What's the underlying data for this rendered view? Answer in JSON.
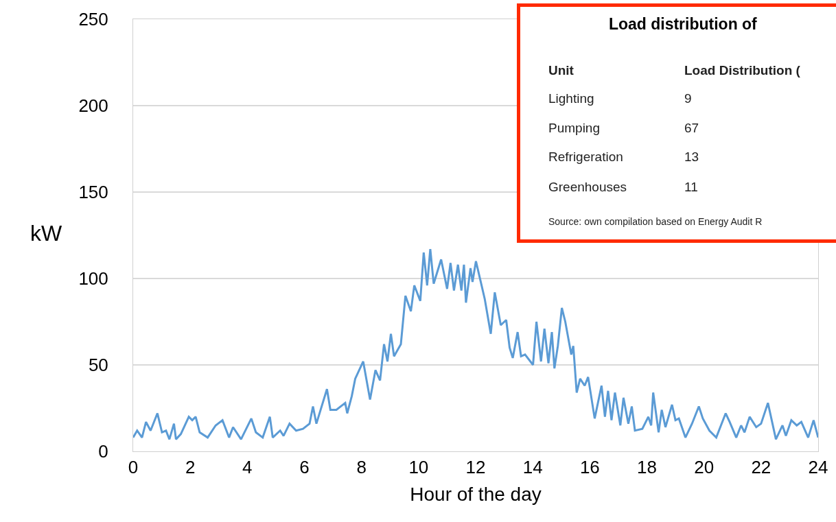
{
  "chart_data": [
    {
      "type": "line",
      "xlabel": "Hour of the day",
      "ylabel": "kW",
      "color": "#5b9bd5",
      "xlim": [
        0,
        24
      ],
      "xticks": [
        0,
        2,
        4,
        6,
        8,
        10,
        12,
        14,
        16,
        18,
        20,
        22,
        24
      ],
      "ylim": [
        0,
        250
      ],
      "yticks": [
        0,
        50,
        100,
        150,
        200,
        250
      ],
      "grid": "y",
      "legend": false,
      "marker": "none",
      "line_style": "solid",
      "x": [
        0,
        0.14,
        0.31,
        0.45,
        0.61,
        0.85,
        1.01,
        1.15,
        1.27,
        1.43,
        1.5,
        1.67,
        1.95,
        2.07,
        2.19,
        2.33,
        2.61,
        2.89,
        3.13,
        3.36,
        3.5,
        3.78,
        4.14,
        4.3,
        4.54,
        4.79,
        4.89,
        5.15,
        5.27,
        5.48,
        5.71,
        5.95,
        6.18,
        6.3,
        6.42,
        6.79,
        6.91,
        7.12,
        7.43,
        7.5,
        7.66,
        7.78,
        8.06,
        8.3,
        8.49,
        8.65,
        8.79,
        8.91,
        9.03,
        9.14,
        9.38,
        9.54,
        9.73,
        9.85,
        10.06,
        10.18,
        10.3,
        10.41,
        10.53,
        10.79,
        11.0,
        11.12,
        11.24,
        11.38,
        11.5,
        11.59,
        11.66,
        11.82,
        11.89,
        12.01,
        12.18,
        12.32,
        12.53,
        12.67,
        12.88,
        13.07,
        13.19,
        13.3,
        13.47,
        13.59,
        13.73,
        14.01,
        14.13,
        14.29,
        14.41,
        14.55,
        14.67,
        14.76,
        14.88,
        15.02,
        15.14,
        15.35,
        15.42,
        15.54,
        15.66,
        15.82,
        15.94,
        16.17,
        16.41,
        16.53,
        16.64,
        16.76,
        16.88,
        17.07,
        17.18,
        17.35,
        17.47,
        17.58,
        17.84,
        18.05,
        18.15,
        18.22,
        18.41,
        18.52,
        18.65,
        18.88,
        19.0,
        19.12,
        19.35,
        19.58,
        19.82,
        19.96,
        20.19,
        20.43,
        20.76,
        20.9,
        21.13,
        21.3,
        21.42,
        21.6,
        21.83,
        22.0,
        22.24,
        22.52,
        22.75,
        22.87,
        23.06,
        23.25,
        23.41,
        23.65,
        23.84,
        24.0
      ],
      "values": [
        8,
        12,
        8,
        17,
        12,
        22,
        11,
        12,
        7,
        16,
        7,
        10,
        20,
        18,
        20,
        11,
        8,
        15,
        18,
        8,
        14,
        7,
        19,
        11,
        8,
        20,
        8,
        12,
        9,
        16,
        12,
        13,
        16,
        26,
        16,
        36,
        24,
        24,
        28,
        22,
        32,
        42,
        52,
        30,
        47,
        41,
        62,
        52,
        68,
        55,
        62,
        90,
        81,
        96,
        87,
        115,
        96,
        117,
        97,
        111,
        94,
        109,
        93,
        108,
        93,
        108,
        86,
        106,
        98,
        110,
        98,
        88,
        68,
        92,
        73,
        76,
        60,
        54,
        69,
        55,
        56,
        50,
        75,
        52,
        71,
        51,
        69,
        48,
        61,
        83,
        75,
        56,
        61,
        34,
        42,
        38,
        43,
        19,
        38,
        20,
        35,
        18,
        34,
        15,
        31,
        16,
        26,
        12,
        13,
        20,
        15,
        34,
        11,
        24,
        14,
        27,
        18,
        19,
        8,
        16,
        26,
        19,
        12,
        8,
        22,
        17,
        8,
        15,
        11,
        20,
        14,
        16,
        28,
        7,
        15,
        9,
        18,
        15,
        17,
        8,
        18,
        8
      ]
    },
    {
      "type": "other",
      "title": "Load distribution of",
      "xlabel": "Unit",
      "ylabel": "Load Distribution (",
      "categories": [
        "Lighting",
        "Pumping",
        "Refrigeration",
        "Greenhouses"
      ],
      "values": [
        9,
        67,
        13,
        11
      ],
      "data_labels": true,
      "color": "#ff2a00",
      "annotations": [
        "Source: own compilation based on Energy Audit R"
      ]
    }
  ]
}
